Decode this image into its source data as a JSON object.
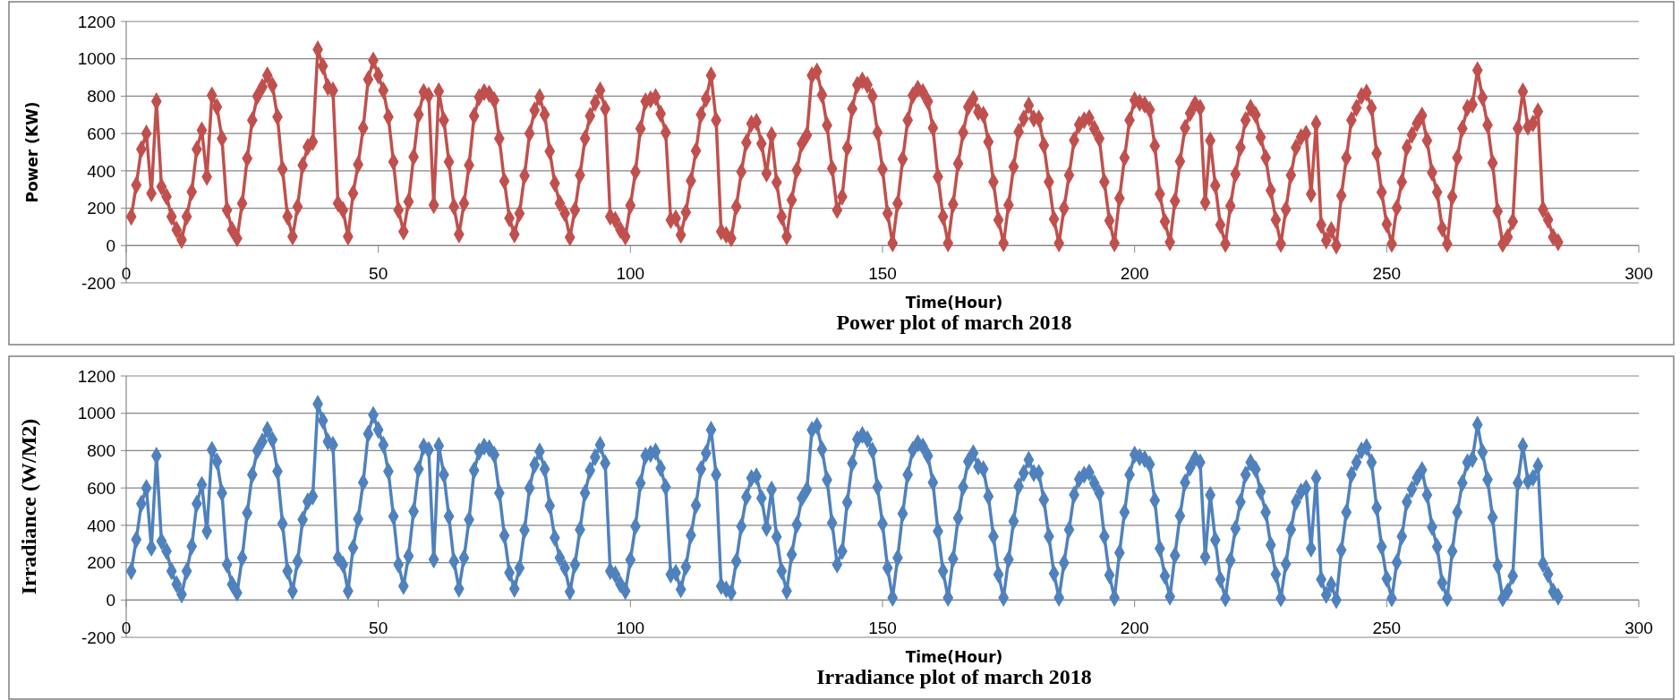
{
  "chart_data": [
    {
      "type": "line",
      "title": "Power plot of march 2018",
      "xlabel": "Time(Hour)",
      "ylabel": "Power (KW)",
      "xlim": [
        0,
        300
      ],
      "xticks": [
        0,
        50,
        100,
        150,
        200,
        250,
        300
      ],
      "ylim": [
        -200,
        1200
      ],
      "yticks": [
        -200,
        0,
        200,
        400,
        600,
        800,
        1000,
        1200
      ],
      "grid": "y",
      "marker": "diamond",
      "x": [
        1,
        2,
        3,
        4,
        5,
        6,
        7,
        8,
        9,
        10,
        11,
        12,
        13,
        14,
        15,
        16,
        17,
        18,
        19,
        20,
        21,
        22,
        23,
        24,
        25,
        26,
        27,
        28,
        29,
        30,
        31,
        32,
        33,
        34,
        35,
        36,
        37,
        38,
        39,
        40,
        41,
        42,
        43,
        44,
        45,
        46,
        47,
        48,
        49,
        50,
        51,
        52,
        53,
        54,
        55,
        56,
        57,
        58,
        59,
        60,
        61,
        62,
        63,
        64,
        65,
        66,
        67,
        68,
        69,
        70,
        71,
        72,
        73,
        74,
        75,
        76,
        77,
        78,
        79,
        80,
        81,
        82,
        83,
        84,
        85,
        86,
        87,
        88,
        89,
        90,
        91,
        92,
        93,
        94,
        95,
        96,
        97,
        98,
        99,
        100,
        101,
        102,
        103,
        104,
        105,
        106,
        107,
        108,
        109,
        110,
        111,
        112,
        113,
        114,
        115,
        116,
        117,
        118,
        119,
        120,
        121,
        122,
        123,
        124,
        125,
        126,
        127,
        128,
        129,
        130,
        131,
        132,
        133,
        134,
        135,
        136,
        137,
        138,
        139,
        140,
        141,
        142,
        143,
        144,
        145,
        146,
        147,
        148,
        149,
        150,
        151,
        152,
        153,
        154,
        155,
        156,
        157,
        158,
        159,
        160,
        161,
        162,
        163,
        164,
        165,
        166,
        167,
        168,
        169,
        170,
        171,
        172,
        173,
        174,
        175,
        176,
        177,
        178,
        179,
        180,
        181,
        182,
        183,
        184,
        185,
        186,
        187,
        188,
        189,
        190,
        191,
        192,
        193,
        194,
        195,
        196,
        197,
        198,
        199,
        200,
        201,
        202,
        203,
        204,
        205,
        206,
        207,
        208,
        209,
        210,
        211,
        212,
        213,
        214,
        215,
        216,
        217,
        218,
        219,
        220,
        221,
        222,
        223,
        224,
        225,
        226,
        227,
        228,
        229,
        230,
        231,
        232,
        233,
        234,
        235,
        236,
        237,
        238,
        239,
        240,
        241,
        242,
        243,
        244,
        245,
        246,
        247,
        248,
        249,
        250,
        251,
        252,
        253,
        254,
        255,
        256,
        257,
        258,
        259,
        260,
        261,
        262,
        263,
        264,
        265,
        266,
        267,
        268,
        269,
        270,
        271,
        272,
        273,
        274,
        275,
        276,
        277,
        278,
        279,
        280,
        281,
        282,
        283,
        284
      ],
      "series": [
        {
          "color": "#c0504d",
          "values": [
            155,
            324,
            516,
            600,
            280,
            772,
            315,
            262,
            155,
            84,
            30,
            155,
            288,
            516,
            617,
            368,
            804,
            742,
            573,
            190,
            84,
            39,
            226,
            466,
            671,
            800,
            849,
            911,
            858,
            689,
            409,
            155,
            48,
            208,
            430,
            528,
            555,
            1050,
            961,
            849,
            831,
            226,
            190,
            48,
            280,
            434,
            630,
            890,
            991,
            911,
            831,
            689,
            448,
            190,
            75,
            235,
            475,
            701,
            822,
            804,
            217,
            826,
            671,
            448,
            208,
            60,
            226,
            430,
            694,
            795,
            822,
            813,
            778,
            573,
            345,
            146,
            60,
            172,
            374,
            600,
            724,
            795,
            701,
            505,
            333,
            226,
            172,
            44,
            190,
            377,
            573,
            694,
            765,
            831,
            733,
            155,
            137,
            84,
            48,
            215,
            395,
            626,
            772,
            783,
            795,
            706,
            605,
            137,
            146,
            57,
            178,
            347,
            507,
            701,
            786,
            911,
            671,
            75,
            57,
            39,
            208,
            395,
            552,
            653,
            662,
            546,
            386,
            591,
            338,
            155,
            48,
            244,
            404,
            546,
            591,
            911,
            932,
            807,
            644,
            413,
            190,
            262,
            523,
            733,
            861,
            884,
            861,
            800,
            605,
            409,
            172,
            12,
            226,
            463,
            671,
            804,
            840,
            822,
            772,
            630,
            368,
            155,
            12,
            221,
            439,
            605,
            742,
            786,
            715,
            701,
            555,
            341,
            137,
            12,
            217,
            422,
            609,
            680,
            751,
            680,
            680,
            537,
            341,
            142,
            12,
            199,
            377,
            564,
            648,
            671,
            683,
            626,
            573,
            341,
            133,
            12,
            253,
            470,
            671,
            778,
            765,
            755,
            727,
            534,
            276,
            129,
            18,
            239,
            451,
            630,
            709,
            759,
            737,
            230,
            562,
            322,
            110,
            9,
            212,
            383,
            525,
            672,
            737,
            700,
            580,
            470,
            295,
            138,
            9,
            193,
            377,
            525,
            580,
            599,
            276,
            654,
            110,
            28,
            83,
            0,
            267,
            470,
            672,
            737,
            801,
            819,
            737,
            494,
            285,
            114,
            9,
            202,
            341,
            525,
            593,
            654,
            696,
            562,
            391,
            285,
            92,
            9,
            261,
            470,
            627,
            737,
            755,
            939,
            792,
            645,
            442,
            184,
            9,
            46,
            129,
            627,
            825,
            636,
            654,
            718,
            193,
            138,
            46,
            18
          ]
        }
      ]
    },
    {
      "type": "line",
      "title": "Irradiance plot of march 2018",
      "xlabel": "Time(Hour)",
      "ylabel": "Irradiance (W/M2)",
      "xlim": [
        0,
        300
      ],
      "xticks": [
        0,
        50,
        100,
        150,
        200,
        250,
        300
      ],
      "ylim": [
        -200,
        1200
      ],
      "yticks": [
        -200,
        0,
        200,
        400,
        600,
        800,
        1000,
        1200
      ],
      "grid": "y",
      "marker": "diamond",
      "x": [
        1,
        2,
        3,
        4,
        5,
        6,
        7,
        8,
        9,
        10,
        11,
        12,
        13,
        14,
        15,
        16,
        17,
        18,
        19,
        20,
        21,
        22,
        23,
        24,
        25,
        26,
        27,
        28,
        29,
        30,
        31,
        32,
        33,
        34,
        35,
        36,
        37,
        38,
        39,
        40,
        41,
        42,
        43,
        44,
        45,
        46,
        47,
        48,
        49,
        50,
        51,
        52,
        53,
        54,
        55,
        56,
        57,
        58,
        59,
        60,
        61,
        62,
        63,
        64,
        65,
        66,
        67,
        68,
        69,
        70,
        71,
        72,
        73,
        74,
        75,
        76,
        77,
        78,
        79,
        80,
        81,
        82,
        83,
        84,
        85,
        86,
        87,
        88,
        89,
        90,
        91,
        92,
        93,
        94,
        95,
        96,
        97,
        98,
        99,
        100,
        101,
        102,
        103,
        104,
        105,
        106,
        107,
        108,
        109,
        110,
        111,
        112,
        113,
        114,
        115,
        116,
        117,
        118,
        119,
        120,
        121,
        122,
        123,
        124,
        125,
        126,
        127,
        128,
        129,
        130,
        131,
        132,
        133,
        134,
        135,
        136,
        137,
        138,
        139,
        140,
        141,
        142,
        143,
        144,
        145,
        146,
        147,
        148,
        149,
        150,
        151,
        152,
        153,
        154,
        155,
        156,
        157,
        158,
        159,
        160,
        161,
        162,
        163,
        164,
        165,
        166,
        167,
        168,
        169,
        170,
        171,
        172,
        173,
        174,
        175,
        176,
        177,
        178,
        179,
        180,
        181,
        182,
        183,
        184,
        185,
        186,
        187,
        188,
        189,
        190,
        191,
        192,
        193,
        194,
        195,
        196,
        197,
        198,
        199,
        200,
        201,
        202,
        203,
        204,
        205,
        206,
        207,
        208,
        209,
        210,
        211,
        212,
        213,
        214,
        215,
        216,
        217,
        218,
        219,
        220,
        221,
        222,
        223,
        224,
        225,
        226,
        227,
        228,
        229,
        230,
        231,
        232,
        233,
        234,
        235,
        236,
        237,
        238,
        239,
        240,
        241,
        242,
        243,
        244,
        245,
        246,
        247,
        248,
        249,
        250,
        251,
        252,
        253,
        254,
        255,
        256,
        257,
        258,
        259,
        260,
        261,
        262,
        263,
        264,
        265,
        266,
        267,
        268,
        269,
        270,
        271,
        272,
        273,
        274,
        275,
        276,
        277,
        278,
        279,
        280,
        281,
        282,
        283,
        284
      ],
      "series": [
        {
          "color": "#4f81bd",
          "values": [
            155,
            324,
            516,
            600,
            280,
            772,
            315,
            262,
            155,
            84,
            30,
            155,
            288,
            516,
            617,
            368,
            804,
            742,
            573,
            190,
            84,
            39,
            226,
            466,
            671,
            800,
            849,
            911,
            858,
            689,
            409,
            155,
            48,
            208,
            430,
            528,
            555,
            1050,
            961,
            849,
            831,
            226,
            190,
            48,
            280,
            434,
            630,
            890,
            991,
            911,
            831,
            689,
            448,
            190,
            75,
            235,
            475,
            701,
            822,
            804,
            217,
            826,
            671,
            448,
            208,
            60,
            226,
            430,
            694,
            795,
            822,
            813,
            778,
            573,
            345,
            146,
            60,
            172,
            374,
            600,
            724,
            795,
            701,
            505,
            333,
            226,
            172,
            44,
            190,
            377,
            573,
            694,
            765,
            831,
            733,
            155,
            137,
            84,
            48,
            215,
            395,
            626,
            772,
            783,
            795,
            706,
            605,
            137,
            146,
            57,
            178,
            347,
            507,
            701,
            786,
            911,
            671,
            75,
            57,
            39,
            208,
            395,
            552,
            653,
            662,
            546,
            386,
            591,
            338,
            155,
            48,
            244,
            404,
            546,
            591,
            911,
            932,
            807,
            644,
            413,
            190,
            262,
            523,
            733,
            861,
            884,
            861,
            800,
            605,
            409,
            172,
            12,
            226,
            463,
            671,
            804,
            840,
            822,
            772,
            630,
            368,
            155,
            12,
            221,
            439,
            605,
            742,
            786,
            715,
            701,
            555,
            341,
            137,
            12,
            217,
            422,
            609,
            680,
            751,
            680,
            680,
            537,
            341,
            142,
            12,
            199,
            377,
            564,
            648,
            671,
            683,
            626,
            573,
            341,
            133,
            12,
            253,
            470,
            671,
            778,
            765,
            755,
            727,
            534,
            276,
            129,
            18,
            239,
            451,
            630,
            709,
            759,
            737,
            230,
            562,
            322,
            110,
            9,
            212,
            383,
            525,
            672,
            737,
            700,
            580,
            470,
            295,
            138,
            9,
            193,
            377,
            525,
            580,
            599,
            276,
            654,
            110,
            28,
            83,
            0,
            267,
            470,
            672,
            737,
            801,
            819,
            737,
            494,
            285,
            114,
            9,
            202,
            341,
            525,
            593,
            654,
            696,
            562,
            391,
            285,
            92,
            9,
            261,
            470,
            627,
            737,
            755,
            939,
            792,
            645,
            442,
            184,
            9,
            46,
            129,
            627,
            825,
            636,
            654,
            718,
            193,
            138,
            46,
            18
          ]
        }
      ]
    }
  ]
}
